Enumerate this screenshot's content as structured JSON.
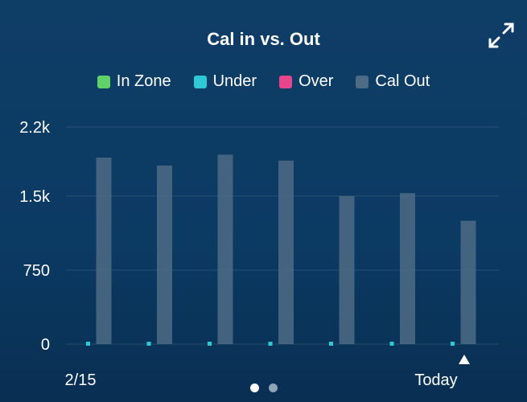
{
  "card": {
    "title": "Cal in vs. Out",
    "expand_icon": "expand-arrows-icon"
  },
  "legend": [
    {
      "label": "In Zone",
      "color": "#5fd36a"
    },
    {
      "label": "Under",
      "color": "#2ec8d6"
    },
    {
      "label": "Over",
      "color": "#e8468c"
    },
    {
      "label": "Cal Out",
      "color": "#4d6b85"
    }
  ],
  "pager": {
    "pages": 2,
    "active": 0
  },
  "chart_data": {
    "type": "bar",
    "title": "Cal in vs. Out",
    "ylim": [
      0,
      2200
    ],
    "yticks": [
      0,
      750,
      1500,
      2200
    ],
    "ytick_labels": [
      "0",
      "750",
      "1.5k",
      "2.2k"
    ],
    "categories": [
      "2/15",
      "",
      "",
      "",
      "",
      "",
      "Today"
    ],
    "x_labels_shown": [
      "2/15",
      "Today"
    ],
    "today_marker_icon": "triangle-up-icon",
    "grid": true,
    "legend_position": "top",
    "series": [
      {
        "name": "Cal Out",
        "color": "#4d6b85",
        "values": [
          1890,
          1810,
          1920,
          1860,
          1500,
          1530,
          1250
        ]
      },
      {
        "name": "Under",
        "color": "#2ec8d6",
        "values": [
          0,
          0,
          0,
          0,
          0,
          0,
          0
        ]
      }
    ]
  }
}
